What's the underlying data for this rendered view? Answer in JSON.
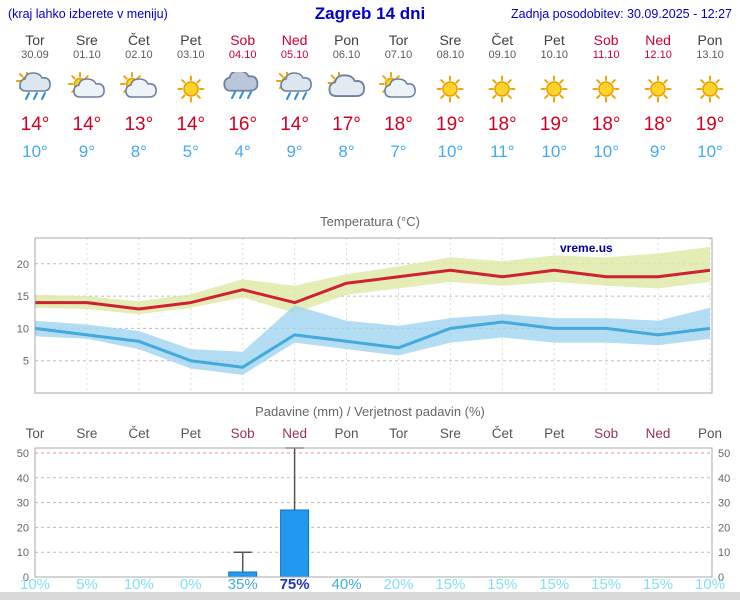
{
  "header": {
    "menu_hint": "(kraj lahko izberete v meniju)",
    "title": "Zagreb 14 dni",
    "updated": "Zadnja posodobitev: 30.09.2025 - 12:27"
  },
  "colors": {
    "accent_blue": "#0000cc",
    "weekday_text": "#3f3f3f",
    "weekend_top": "#cc0033",
    "weekend_bottom": "#993355",
    "temp_max": "#d40022",
    "temp_min": "#45aaf0",
    "bar_fill": "#2299ee",
    "bar_border": "#1273c4",
    "prob_low": "#82e0f2",
    "prob_mid": "#3eaede",
    "prob_high": "#2233bb"
  },
  "days": [
    {
      "name": "Tor",
      "date": "30.09",
      "weekend": false,
      "icon": "cloud-rain",
      "tmax_label": "14°",
      "tmin_label": "10°"
    },
    {
      "name": "Sre",
      "date": "01.10",
      "weekend": false,
      "icon": "sun-cloud",
      "tmax_label": "14°",
      "tmin_label": "9°"
    },
    {
      "name": "Čet",
      "date": "02.10",
      "weekend": false,
      "icon": "sun-cloud",
      "tmax_label": "13°",
      "tmin_label": "8°"
    },
    {
      "name": "Pet",
      "date": "03.10",
      "weekend": false,
      "icon": "sun",
      "tmax_label": "14°",
      "tmin_label": "5°"
    },
    {
      "name": "Sob",
      "date": "04.10",
      "weekend": true,
      "icon": "rain",
      "tmax_label": "16°",
      "tmin_label": "4°"
    },
    {
      "name": "Ned",
      "date": "05.10",
      "weekend": true,
      "icon": "sun-rain",
      "tmax_label": "14°",
      "tmin_label": "9°"
    },
    {
      "name": "Pon",
      "date": "06.10",
      "weekend": false,
      "icon": "cloud",
      "tmax_label": "17°",
      "tmin_label": "8°"
    },
    {
      "name": "Tor",
      "date": "07.10",
      "weekend": false,
      "icon": "sun-cloud",
      "tmax_label": "18°",
      "tmin_label": "7°"
    },
    {
      "name": "Sre",
      "date": "08.10",
      "weekend": false,
      "icon": "sun",
      "tmax_label": "19°",
      "tmin_label": "10°"
    },
    {
      "name": "Čet",
      "date": "09.10",
      "weekend": false,
      "icon": "sun",
      "tmax_label": "18°",
      "tmin_label": "11°"
    },
    {
      "name": "Pet",
      "date": "10.10",
      "weekend": false,
      "icon": "sun",
      "tmax_label": "19°",
      "tmin_label": "10°"
    },
    {
      "name": "Sob",
      "date": "11.10",
      "weekend": true,
      "icon": "sun",
      "tmax_label": "18°",
      "tmin_label": "10°"
    },
    {
      "name": "Ned",
      "date": "12.10",
      "weekend": true,
      "icon": "sun",
      "tmax_label": "18°",
      "tmin_label": "9°"
    },
    {
      "name": "Pon",
      "date": "13.10",
      "weekend": false,
      "icon": "sun",
      "tmax_label": "19°",
      "tmin_label": "10°"
    }
  ],
  "chart_data": [
    {
      "type": "line",
      "title": "Temperatura (°C)",
      "x": [
        "Tor 30.09",
        "Sre 01.10",
        "Čet 02.10",
        "Pet 03.10",
        "Sob 04.10",
        "Ned 05.10",
        "Pon 06.10",
        "Tor 07.10",
        "Sre 08.10",
        "Čet 09.10",
        "Pet 10.10",
        "Sob 11.10",
        "Ned 12.10",
        "Pon 13.10"
      ],
      "series": [
        {
          "name": "max-temperature-line",
          "color": "#cc2233",
          "values": [
            14,
            14,
            13,
            14,
            16,
            14,
            17,
            18,
            19,
            18,
            19,
            18,
            18,
            19
          ]
        },
        {
          "name": "min-temperature-line",
          "color": "#44aadd",
          "values": [
            10,
            9,
            8,
            5,
            4,
            9,
            8,
            7,
            10,
            11,
            10,
            10,
            9,
            10
          ]
        }
      ],
      "bands": [
        {
          "name": "max-temperature-band",
          "color": "#dce9a2",
          "upper": [
            15.2,
            15.0,
            14.2,
            15.3,
            17.6,
            16.6,
            18.4,
            19.6,
            21.0,
            20.4,
            21.3,
            21.0,
            21.6,
            22.6
          ],
          "lower": [
            13.2,
            13.0,
            12.2,
            13.2,
            14.8,
            12.4,
            15.2,
            16.2,
            17.2,
            16.6,
            17.2,
            16.6,
            16.2,
            17.2
          ]
        },
        {
          "name": "min-temperature-band",
          "color": "#9fd4ef",
          "upper": [
            11.2,
            10.6,
            9.6,
            6.8,
            6.4,
            13.6,
            11.2,
            10.4,
            11.6,
            12.2,
            11.6,
            11.6,
            11.2,
            13.2
          ],
          "lower": [
            8.8,
            8.4,
            6.8,
            3.8,
            2.8,
            7.8,
            6.8,
            5.8,
            7.8,
            8.6,
            7.8,
            7.8,
            7.4,
            8.4
          ]
        }
      ],
      "ylim": [
        0,
        24
      ],
      "yticks": [
        5,
        10,
        15,
        20
      ],
      "grid": true,
      "legend": "none",
      "watermark": "vreme.us"
    },
    {
      "type": "bar",
      "title": "Padavine (mm) / Verjetnost padavin (%)",
      "categories": [
        "Tor",
        "Sre",
        "Čet",
        "Pet",
        "Sob",
        "Ned",
        "Pon",
        "Tor",
        "Sre",
        "Čet",
        "Pet",
        "Sob",
        "Ned",
        "Pon"
      ],
      "values": [
        0,
        0,
        0,
        0,
        2,
        27,
        0,
        0,
        0,
        0,
        0,
        0,
        0,
        0
      ],
      "whisker_max": [
        0,
        0,
        0,
        0,
        10,
        52,
        0,
        0,
        0,
        0,
        0,
        0,
        0,
        0
      ],
      "probabilities": [
        10,
        5,
        10,
        0,
        35,
        75,
        40,
        20,
        15,
        15,
        15,
        15,
        15,
        10
      ],
      "prob_labels": [
        "10%",
        "5%",
        "10%",
        "0%",
        "35%",
        "75%",
        "40%",
        "20%",
        "15%",
        "15%",
        "15%",
        "15%",
        "15%",
        "10%"
      ],
      "ylim": [
        0,
        52
      ],
      "yticks": [
        0,
        10,
        20,
        30,
        40,
        50
      ],
      "red_line": 50,
      "grid": true,
      "legend": "none"
    }
  ]
}
